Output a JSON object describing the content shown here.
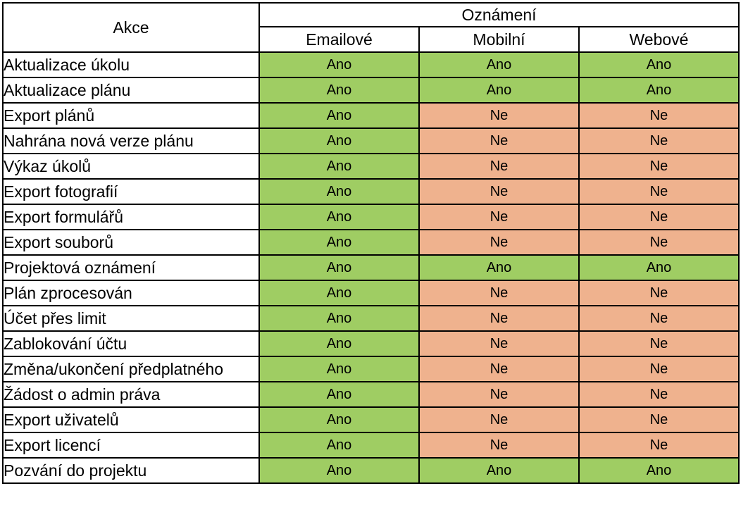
{
  "header": {
    "akce": "Akce",
    "group": "Oznámení",
    "columns": [
      "Emailové",
      "Mobilní",
      "Webové"
    ]
  },
  "colors": {
    "yes": "#9fcd63",
    "no": "#efb28e"
  },
  "rows": [
    {
      "action": "Aktualizace úkolu",
      "values": [
        "Ano",
        "Ano",
        "Ano"
      ]
    },
    {
      "action": "Aktualizace plánu",
      "values": [
        "Ano",
        "Ano",
        "Ano"
      ]
    },
    {
      "action": "Export plánů",
      "values": [
        "Ano",
        "Ne",
        "Ne"
      ]
    },
    {
      "action": "Nahrána nová verze plánu",
      "values": [
        "Ano",
        "Ne",
        "Ne"
      ]
    },
    {
      "action": "Výkaz úkolů",
      "values": [
        "Ano",
        "Ne",
        "Ne"
      ]
    },
    {
      "action": "Export fotografií",
      "values": [
        "Ano",
        "Ne",
        "Ne"
      ]
    },
    {
      "action": "Export formulářů",
      "values": [
        "Ano",
        "Ne",
        "Ne"
      ]
    },
    {
      "action": "Export souborů",
      "values": [
        "Ano",
        "Ne",
        "Ne"
      ]
    },
    {
      "action": "Projektová oznámení",
      "values": [
        "Ano",
        "Ano",
        "Ano"
      ]
    },
    {
      "action": "Plán zprocesován",
      "values": [
        "Ano",
        "Ne",
        "Ne"
      ]
    },
    {
      "action": "Účet přes limit",
      "values": [
        "Ano",
        "Ne",
        "Ne"
      ]
    },
    {
      "action": "Zablokování účtu",
      "values": [
        "Ano",
        "Ne",
        "Ne"
      ]
    },
    {
      "action": "Změna/ukončení předplatného",
      "values": [
        "Ano",
        "Ne",
        "Ne"
      ]
    },
    {
      "action": "Žádost o admin práva",
      "values": [
        "Ano",
        "Ne",
        "Ne"
      ]
    },
    {
      "action": "Export uživatelů",
      "values": [
        "Ano",
        "Ne",
        "Ne"
      ]
    },
    {
      "action": "Export licencí",
      "values": [
        "Ano",
        "Ne",
        "Ne"
      ]
    },
    {
      "action": "Pozvání do projektu",
      "values": [
        "Ano",
        "Ano",
        "Ano"
      ]
    }
  ]
}
